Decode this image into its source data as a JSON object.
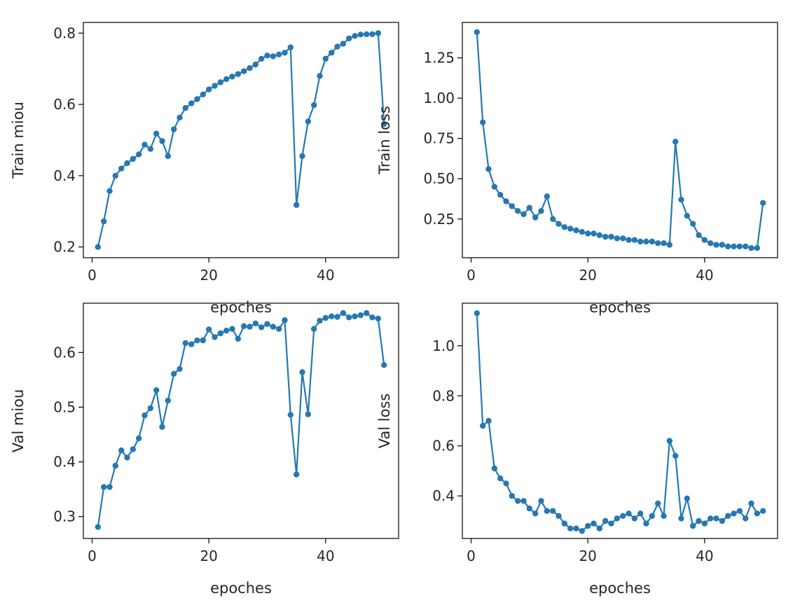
{
  "figure": {
    "background": "#ffffff",
    "series_color": "#2678b2"
  },
  "chart_data": [
    {
      "id": "train-miou",
      "type": "line",
      "marker": "point",
      "xlabel": "epoches",
      "ylabel": "Train miou",
      "xlim": [
        -1.5,
        52.5
      ],
      "ylim": [
        0.17,
        0.83
      ],
      "xticks": [
        {
          "value": 0,
          "label": "0"
        },
        {
          "value": 20,
          "label": "20"
        },
        {
          "value": 40,
          "label": "40"
        }
      ],
      "yticks": [
        {
          "value": 0.2,
          "label": "0.2"
        },
        {
          "value": 0.4,
          "label": "0.4"
        },
        {
          "value": 0.6,
          "label": "0.6"
        },
        {
          "value": 0.8,
          "label": "0.8"
        }
      ],
      "x": [
        1,
        2,
        3,
        4,
        5,
        6,
        7,
        8,
        9,
        10,
        11,
        12,
        13,
        14,
        15,
        16,
        17,
        18,
        19,
        20,
        21,
        22,
        23,
        24,
        25,
        26,
        27,
        28,
        29,
        30,
        31,
        32,
        33,
        34,
        35,
        36,
        37,
        38,
        39,
        40,
        41,
        42,
        43,
        44,
        45,
        46,
        47,
        48,
        49,
        50
      ],
      "y": [
        0.2,
        0.272,
        0.357,
        0.4,
        0.42,
        0.435,
        0.447,
        0.46,
        0.487,
        0.475,
        0.518,
        0.497,
        0.455,
        0.53,
        0.563,
        0.59,
        0.603,
        0.615,
        0.628,
        0.642,
        0.652,
        0.662,
        0.671,
        0.678,
        0.685,
        0.693,
        0.702,
        0.712,
        0.728,
        0.737,
        0.735,
        0.74,
        0.745,
        0.76,
        0.318,
        0.455,
        0.552,
        0.598,
        0.68,
        0.728,
        0.745,
        0.762,
        0.77,
        0.785,
        0.792,
        0.796,
        0.797,
        0.797,
        0.8,
        0.545
      ]
    },
    {
      "id": "train-loss",
      "type": "line",
      "marker": "point",
      "xlabel": "epoches",
      "ylabel": "Train loss",
      "xlim": [
        -1.5,
        52.5
      ],
      "ylim": [
        0.01,
        1.47
      ],
      "xticks": [
        {
          "value": 0,
          "label": "0"
        },
        {
          "value": 20,
          "label": "20"
        },
        {
          "value": 40,
          "label": "40"
        }
      ],
      "yticks": [
        {
          "value": 0.25,
          "label": "0.25"
        },
        {
          "value": 0.5,
          "label": "0.50"
        },
        {
          "value": 0.75,
          "label": "0.75"
        },
        {
          "value": 1.0,
          "label": "1.00"
        },
        {
          "value": 1.25,
          "label": "1.25"
        }
      ],
      "x": [
        1,
        2,
        3,
        4,
        5,
        6,
        7,
        8,
        9,
        10,
        11,
        12,
        13,
        14,
        15,
        16,
        17,
        18,
        19,
        20,
        21,
        22,
        23,
        24,
        25,
        26,
        27,
        28,
        29,
        30,
        31,
        32,
        33,
        34,
        35,
        36,
        37,
        38,
        39,
        40,
        41,
        42,
        43,
        44,
        45,
        46,
        47,
        48,
        49,
        50
      ],
      "y": [
        1.41,
        0.85,
        0.56,
        0.45,
        0.4,
        0.36,
        0.33,
        0.3,
        0.28,
        0.32,
        0.26,
        0.3,
        0.39,
        0.25,
        0.22,
        0.2,
        0.19,
        0.18,
        0.17,
        0.16,
        0.16,
        0.15,
        0.14,
        0.14,
        0.13,
        0.13,
        0.12,
        0.12,
        0.11,
        0.11,
        0.11,
        0.1,
        0.1,
        0.09,
        0.73,
        0.37,
        0.27,
        0.22,
        0.15,
        0.12,
        0.1,
        0.09,
        0.09,
        0.08,
        0.08,
        0.08,
        0.08,
        0.07,
        0.07,
        0.35
      ]
    },
    {
      "id": "val-miou",
      "type": "line",
      "marker": "point",
      "xlabel": "epoches",
      "ylabel": "Val miou",
      "xlim": [
        -1.5,
        52.5
      ],
      "ylim": [
        0.26,
        0.69
      ],
      "xticks": [
        {
          "value": 0,
          "label": "0"
        },
        {
          "value": 20,
          "label": "20"
        },
        {
          "value": 40,
          "label": "40"
        }
      ],
      "yticks": [
        {
          "value": 0.3,
          "label": "0.3"
        },
        {
          "value": 0.4,
          "label": "0.4"
        },
        {
          "value": 0.5,
          "label": "0.5"
        },
        {
          "value": 0.6,
          "label": "0.6"
        }
      ],
      "x": [
        1,
        2,
        3,
        4,
        5,
        6,
        7,
        8,
        9,
        10,
        11,
        12,
        13,
        14,
        15,
        16,
        17,
        18,
        19,
        20,
        21,
        22,
        23,
        24,
        25,
        26,
        27,
        28,
        29,
        30,
        31,
        32,
        33,
        34,
        35,
        36,
        37,
        38,
        39,
        40,
        41,
        42,
        43,
        44,
        45,
        46,
        47,
        48,
        49,
        50
      ],
      "y": [
        0.281,
        0.354,
        0.354,
        0.393,
        0.421,
        0.408,
        0.423,
        0.443,
        0.485,
        0.498,
        0.531,
        0.464,
        0.512,
        0.561,
        0.57,
        0.617,
        0.615,
        0.622,
        0.622,
        0.642,
        0.628,
        0.635,
        0.64,
        0.643,
        0.625,
        0.648,
        0.647,
        0.653,
        0.646,
        0.652,
        0.647,
        0.643,
        0.659,
        0.486,
        0.377,
        0.564,
        0.487,
        0.643,
        0.658,
        0.663,
        0.666,
        0.665,
        0.672,
        0.664,
        0.666,
        0.668,
        0.672,
        0.664,
        0.662,
        0.577
      ]
    },
    {
      "id": "val-loss",
      "type": "line",
      "marker": "point",
      "xlabel": "epoches",
      "ylabel": "Val loss",
      "xlim": [
        -1.5,
        52.5
      ],
      "ylim": [
        0.23,
        1.17
      ],
      "xticks": [
        {
          "value": 0,
          "label": "0"
        },
        {
          "value": 20,
          "label": "20"
        },
        {
          "value": 40,
          "label": "40"
        }
      ],
      "yticks": [
        {
          "value": 0.4,
          "label": "0.4"
        },
        {
          "value": 0.6,
          "label": "0.6"
        },
        {
          "value": 0.8,
          "label": "0.8"
        },
        {
          "value": 1.0,
          "label": "1.0"
        }
      ],
      "x": [
        1,
        2,
        3,
        4,
        5,
        6,
        7,
        8,
        9,
        10,
        11,
        12,
        13,
        14,
        15,
        16,
        17,
        18,
        19,
        20,
        21,
        22,
        23,
        24,
        25,
        26,
        27,
        28,
        29,
        30,
        31,
        32,
        33,
        34,
        35,
        36,
        37,
        38,
        39,
        40,
        41,
        42,
        43,
        44,
        45,
        46,
        47,
        48,
        49,
        50
      ],
      "y": [
        1.13,
        0.68,
        0.7,
        0.51,
        0.47,
        0.45,
        0.4,
        0.38,
        0.38,
        0.35,
        0.33,
        0.38,
        0.34,
        0.34,
        0.32,
        0.29,
        0.27,
        0.27,
        0.26,
        0.28,
        0.29,
        0.27,
        0.3,
        0.29,
        0.31,
        0.32,
        0.33,
        0.31,
        0.33,
        0.29,
        0.32,
        0.37,
        0.32,
        0.62,
        0.56,
        0.31,
        0.39,
        0.28,
        0.3,
        0.29,
        0.31,
        0.31,
        0.3,
        0.32,
        0.33,
        0.34,
        0.31,
        0.37,
        0.33,
        0.34
      ]
    }
  ]
}
